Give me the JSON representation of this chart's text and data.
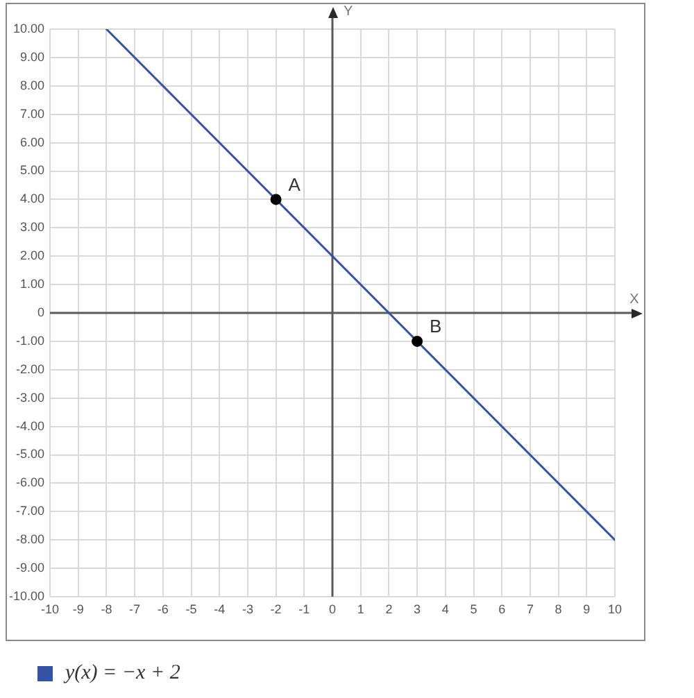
{
  "chart_data": {
    "type": "line",
    "series": [
      {
        "name": "y(x) = −x + 2",
        "color": "#3553a5",
        "x": [
          -8,
          10
        ],
        "values": [
          10,
          -8
        ]
      },
      {
        "type": "scatter",
        "color": "#000000",
        "x": [
          -2,
          3
        ],
        "values": [
          4,
          -1
        ]
      }
    ],
    "xlabel": "X",
    "ylabel": "Y",
    "annotations": [
      {
        "text": "A",
        "x": -2,
        "y": 4
      },
      {
        "text": "B",
        "x": 3,
        "y": -1
      }
    ],
    "xlim": [
      -10,
      10
    ],
    "ylim": [
      -10,
      10
    ],
    "xticks": [
      -10,
      -9,
      -8,
      -7,
      -6,
      -5,
      -4,
      -3,
      -2,
      -1,
      0,
      1,
      2,
      3,
      4,
      5,
      6,
      7,
      8,
      9,
      10
    ],
    "yticks": [
      {
        "value": -10,
        "label": "-10.00"
      },
      {
        "value": -9,
        "label": "-9.00"
      },
      {
        "value": -8,
        "label": "-8.00"
      },
      {
        "value": -7,
        "label": "-7.00"
      },
      {
        "value": -6,
        "label": "-6.00"
      },
      {
        "value": -5,
        "label": "-5.00"
      },
      {
        "value": -4,
        "label": "-4.00"
      },
      {
        "value": -3,
        "label": "-3.00"
      },
      {
        "value": -2,
        "label": "-2.00"
      },
      {
        "value": -1,
        "label": "-1.00"
      },
      0,
      {
        "value": 1,
        "label": "1.00"
      },
      {
        "value": 2,
        "label": "2.00"
      },
      {
        "value": 3,
        "label": "3.00"
      },
      {
        "value": 4,
        "label": "4.00"
      },
      {
        "value": 5,
        "label": "5.00"
      },
      {
        "value": 6,
        "label": "6.00"
      },
      {
        "value": 7,
        "label": "7.00"
      },
      {
        "value": 8,
        "label": "8.00"
      },
      {
        "value": 9,
        "label": "9.00"
      },
      {
        "value": 10,
        "label": "10.00"
      }
    ],
    "grid": true,
    "legend": "bottom left"
  }
}
